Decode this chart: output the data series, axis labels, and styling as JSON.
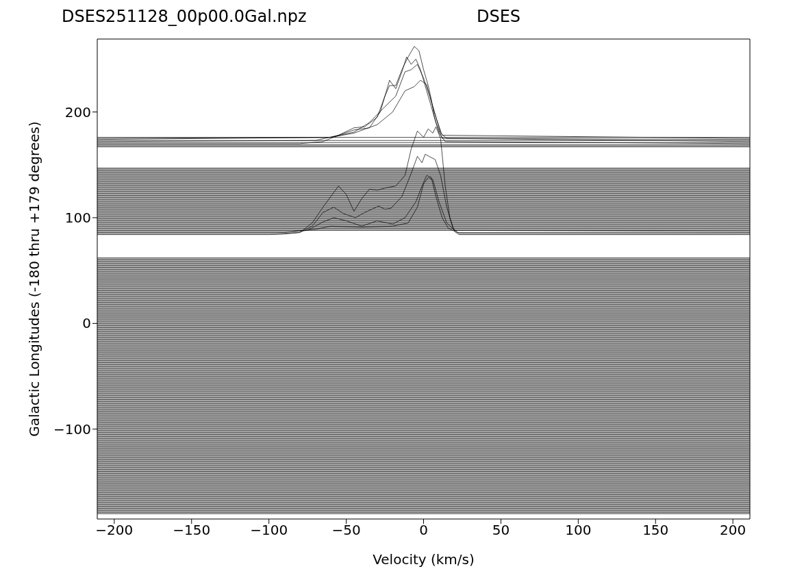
{
  "chart_data": {
    "type": "line",
    "title": "DSES251128_00p00.0Gal.npz",
    "subtitle": "DSES",
    "xlabel": "Velocity (km/s)",
    "ylabel": "Galactic Longitudes   (-180 thru +179 degrees)",
    "color": "#000000",
    "xlim": [
      -211,
      211
    ],
    "ylim": [
      -185,
      269
    ],
    "xticks": [
      -200,
      -150,
      -100,
      -50,
      0,
      50,
      100,
      150,
      200
    ],
    "yticks": [
      -100,
      0,
      100,
      200
    ],
    "marker": "none",
    "line_style": "solid",
    "x": [
      -211,
      211
    ],
    "series": [
      {
        "x": [
          -211,
          -100,
          -90,
          -80,
          -72,
          -65,
          -60,
          -55,
          -50,
          -45,
          -40,
          -35,
          -30,
          -25,
          -18,
          -12,
          -8,
          -4,
          0,
          3,
          6,
          8,
          11,
          14,
          17,
          20,
          23,
          211
        ],
        "values": [
          84,
          84,
          84.5,
          86,
          95,
          110,
          120,
          130,
          122,
          106,
          118,
          127,
          126,
          128,
          130,
          140,
          165,
          182,
          176,
          184,
          180,
          186,
          175,
          130,
          100,
          87,
          84,
          84
        ]
      },
      {
        "x": [
          -211,
          -95,
          -80,
          -72,
          -65,
          -58,
          -52,
          -44,
          -38,
          -29,
          -25,
          -21,
          -14,
          -8,
          -4,
          -1,
          1,
          7.5,
          11,
          15,
          19,
          23,
          211
        ],
        "values": [
          85,
          85,
          86,
          92,
          105,
          110,
          104,
          100,
          105,
          111,
          108,
          109,
          120,
          142,
          158,
          152,
          160,
          155,
          140,
          110,
          90,
          85,
          85
        ]
      },
      {
        "x": [
          -211,
          -90,
          -75,
          -65,
          -58,
          -50,
          -40,
          -30,
          -20,
          -12,
          -5,
          -1,
          2,
          5,
          8,
          12,
          16,
          22,
          211
        ],
        "values": [
          86,
          86,
          88,
          96,
          100,
          97,
          92,
          97,
          94,
          100,
          115,
          130,
          140,
          138,
          120,
          100,
          90,
          86,
          86
        ]
      },
      {
        "x": [
          -211,
          -85,
          -70,
          -60,
          -40,
          -20,
          -10,
          -4,
          0,
          3,
          6,
          10,
          15,
          20,
          211
        ],
        "values": [
          87,
          87,
          89,
          92,
          91,
          92,
          95,
          110,
          132,
          138,
          136,
          115,
          95,
          88,
          87
        ]
      },
      {
        "x": [
          -211,
          -80,
          -65,
          -55,
          -45,
          -38,
          -30,
          -25,
          -22,
          -18,
          -14,
          -10,
          -6,
          -3,
          0,
          3,
          5,
          7,
          10,
          14,
          211
        ],
        "values": [
          170,
          170,
          172,
          178,
          185,
          186,
          195,
          215,
          225,
          225,
          240,
          252,
          262,
          258,
          240,
          225,
          212,
          195,
          180,
          172,
          170
        ]
      },
      {
        "x": [
          -211,
          -70,
          -55,
          -45,
          -35,
          -28,
          -22,
          -18,
          -14,
          -11,
          -8,
          -5,
          -2,
          2,
          5,
          8,
          12,
          211
        ],
        "values": [
          172,
          173,
          178,
          183,
          185,
          200,
          230,
          222,
          238,
          252,
          245,
          250,
          240,
          220,
          205,
          190,
          175,
          172
        ]
      },
      {
        "x": [
          -211,
          -60,
          -45,
          -35,
          -25,
          -18,
          -12,
          -8,
          -4,
          0,
          4,
          7,
          11,
          15,
          211
        ],
        "values": [
          174,
          176,
          181,
          190,
          205,
          215,
          238,
          240,
          245,
          232,
          215,
          200,
          180,
          175,
          174
        ]
      },
      {
        "x": [
          -211,
          -60,
          -45,
          -30,
          -20,
          -12,
          -6,
          -2,
          2,
          5,
          8,
          12,
          211
        ],
        "values": [
          175,
          176,
          180,
          188,
          200,
          220,
          224,
          230,
          226,
          210,
          195,
          178,
          175
        ]
      },
      {
        "values": [
          167,
          167
        ]
      },
      {
        "values": [
          168,
          168
        ]
      },
      {
        "values": [
          169,
          169
        ]
      },
      {
        "values": [
          171,
          171
        ]
      },
      {
        "values": [
          173,
          173
        ]
      },
      {
        "values": [
          176,
          176
        ]
      },
      {
        "values": [
          88,
          88
        ]
      },
      {
        "values": [
          89,
          89
        ]
      },
      {
        "values": [
          90,
          90
        ]
      },
      {
        "values": [
          91,
          91
        ]
      },
      {
        "values": [
          92,
          92
        ]
      },
      {
        "values": [
          93,
          93
        ]
      },
      {
        "values": [
          94,
          94
        ]
      },
      {
        "values": [
          95,
          95
        ]
      },
      {
        "values": [
          96,
          96
        ]
      },
      {
        "values": [
          97,
          97
        ]
      },
      {
        "values": [
          98,
          98
        ]
      },
      {
        "values": [
          99,
          99
        ]
      },
      {
        "values": [
          100,
          100
        ]
      },
      {
        "values": [
          101,
          101
        ]
      },
      {
        "values": [
          102,
          102
        ]
      },
      {
        "values": [
          103,
          103
        ]
      },
      {
        "values": [
          104,
          104
        ]
      },
      {
        "values": [
          105,
          105
        ]
      },
      {
        "values": [
          106,
          106
        ]
      },
      {
        "values": [
          107,
          107
        ]
      },
      {
        "values": [
          108,
          108
        ]
      },
      {
        "values": [
          109,
          109
        ]
      },
      {
        "values": [
          110,
          110
        ]
      },
      {
        "values": [
          111,
          111
        ]
      },
      {
        "values": [
          112,
          112
        ]
      },
      {
        "values": [
          113,
          113
        ]
      },
      {
        "values": [
          114,
          114
        ]
      },
      {
        "values": [
          115,
          115
        ]
      },
      {
        "values": [
          116,
          116
        ]
      },
      {
        "values": [
          117,
          117
        ]
      },
      {
        "values": [
          118,
          118
        ]
      },
      {
        "values": [
          119,
          119
        ]
      },
      {
        "values": [
          120,
          120
        ]
      },
      {
        "values": [
          121,
          121
        ]
      },
      {
        "values": [
          122,
          122
        ]
      },
      {
        "values": [
          123,
          123
        ]
      },
      {
        "values": [
          124,
          124
        ]
      },
      {
        "values": [
          125,
          125
        ]
      },
      {
        "values": [
          126,
          126
        ]
      },
      {
        "values": [
          127,
          127
        ]
      },
      {
        "values": [
          128,
          128
        ]
      },
      {
        "values": [
          129,
          129
        ]
      },
      {
        "values": [
          130,
          130
        ]
      },
      {
        "values": [
          131,
          131
        ]
      },
      {
        "values": [
          132,
          132
        ]
      },
      {
        "values": [
          133,
          133
        ]
      },
      {
        "values": [
          134,
          134
        ]
      },
      {
        "values": [
          135,
          135
        ]
      },
      {
        "values": [
          136,
          136
        ]
      },
      {
        "values": [
          137,
          137
        ]
      },
      {
        "values": [
          138,
          138
        ]
      },
      {
        "values": [
          139,
          139
        ]
      },
      {
        "values": [
          140,
          140
        ]
      },
      {
        "values": [
          141,
          141
        ]
      },
      {
        "values": [
          142,
          142
        ]
      },
      {
        "values": [
          143,
          143
        ]
      },
      {
        "values": [
          144,
          144
        ]
      },
      {
        "values": [
          145,
          145
        ]
      },
      {
        "values": [
          146,
          146
        ]
      },
      {
        "values": [
          147,
          147
        ]
      },
      {
        "values": [
          -180,
          -180
        ]
      },
      {
        "values": [
          -179,
          -179
        ]
      },
      {
        "values": [
          -178,
          -178
        ]
      },
      {
        "values": [
          -177,
          -177
        ]
      },
      {
        "values": [
          -176,
          -176
        ]
      },
      {
        "values": [
          -175,
          -175
        ]
      },
      {
        "values": [
          -174,
          -174
        ]
      },
      {
        "values": [
          -173,
          -173
        ]
      },
      {
        "values": [
          -172,
          -172
        ]
      },
      {
        "values": [
          -171,
          -171
        ]
      },
      {
        "values": [
          -170,
          -170
        ]
      },
      {
        "values": [
          -169,
          -169
        ]
      },
      {
        "values": [
          -168,
          -168
        ]
      },
      {
        "values": [
          -167,
          -167
        ]
      },
      {
        "values": [
          -166,
          -166
        ]
      },
      {
        "values": [
          -165,
          -165
        ]
      },
      {
        "values": [
          -164,
          -164
        ]
      },
      {
        "values": [
          -163,
          -163
        ]
      },
      {
        "values": [
          -162,
          -162
        ]
      },
      {
        "values": [
          -161,
          -161
        ]
      },
      {
        "values": [
          -160,
          -160
        ]
      },
      {
        "values": [
          -159,
          -159
        ]
      },
      {
        "values": [
          -158,
          -158
        ]
      },
      {
        "values": [
          -157,
          -157
        ]
      },
      {
        "values": [
          -156,
          -156
        ]
      },
      {
        "values": [
          -155,
          -155
        ]
      },
      {
        "values": [
          -154,
          -154
        ]
      },
      {
        "values": [
          -153,
          -153
        ]
      },
      {
        "values": [
          -152,
          -152
        ]
      },
      {
        "values": [
          -151,
          -151
        ]
      },
      {
        "values": [
          -150,
          -150
        ]
      },
      {
        "values": [
          -149,
          -149
        ]
      },
      {
        "values": [
          -148,
          -148
        ]
      },
      {
        "values": [
          -147,
          -147
        ]
      },
      {
        "values": [
          -146,
          -146
        ]
      },
      {
        "values": [
          -145,
          -145
        ]
      },
      {
        "values": [
          -144,
          -144
        ]
      },
      {
        "values": [
          -143,
          -143
        ]
      },
      {
        "values": [
          -142,
          -142
        ]
      },
      {
        "values": [
          -141,
          -141
        ]
      },
      {
        "values": [
          -140,
          -140
        ]
      },
      {
        "values": [
          -139,
          -139
        ]
      },
      {
        "values": [
          -138,
          -138
        ]
      },
      {
        "values": [
          -137,
          -137
        ]
      },
      {
        "values": [
          -136,
          -136
        ]
      },
      {
        "values": [
          -135,
          -135
        ]
      },
      {
        "values": [
          -134,
          -134
        ]
      },
      {
        "values": [
          -133,
          -133
        ]
      },
      {
        "values": [
          -132,
          -132
        ]
      },
      {
        "values": [
          -131,
          -131
        ]
      },
      {
        "values": [
          -130,
          -130
        ]
      },
      {
        "values": [
          -129,
          -129
        ]
      },
      {
        "values": [
          -128,
          -128
        ]
      },
      {
        "values": [
          -127,
          -127
        ]
      },
      {
        "values": [
          -126,
          -126
        ]
      },
      {
        "values": [
          -125,
          -125
        ]
      },
      {
        "values": [
          -124,
          -124
        ]
      },
      {
        "values": [
          -123,
          -123
        ]
      },
      {
        "values": [
          -122,
          -122
        ]
      },
      {
        "values": [
          -121,
          -121
        ]
      },
      {
        "values": [
          -120,
          -120
        ]
      },
      {
        "values": [
          -119,
          -119
        ]
      },
      {
        "values": [
          -118,
          -118
        ]
      },
      {
        "values": [
          -117,
          -117
        ]
      },
      {
        "values": [
          -116,
          -116
        ]
      },
      {
        "values": [
          -115,
          -115
        ]
      },
      {
        "values": [
          -114,
          -114
        ]
      },
      {
        "values": [
          -113,
          -113
        ]
      },
      {
        "values": [
          -112,
          -112
        ]
      },
      {
        "values": [
          -111,
          -111
        ]
      },
      {
        "values": [
          -110,
          -110
        ]
      },
      {
        "values": [
          -109,
          -109
        ]
      },
      {
        "values": [
          -108,
          -108
        ]
      },
      {
        "values": [
          -107,
          -107
        ]
      },
      {
        "values": [
          -106,
          -106
        ]
      },
      {
        "values": [
          -105,
          -105
        ]
      },
      {
        "values": [
          -104,
          -104
        ]
      },
      {
        "values": [
          -103,
          -103
        ]
      },
      {
        "values": [
          -102,
          -102
        ]
      },
      {
        "values": [
          -101,
          -101
        ]
      },
      {
        "values": [
          -100,
          -100
        ]
      },
      {
        "values": [
          -99,
          -99
        ]
      },
      {
        "values": [
          -98,
          -98
        ]
      },
      {
        "values": [
          -97,
          -97
        ]
      },
      {
        "values": [
          -96,
          -96
        ]
      },
      {
        "values": [
          -95,
          -95
        ]
      },
      {
        "values": [
          -94,
          -94
        ]
      },
      {
        "values": [
          -93,
          -93
        ]
      },
      {
        "values": [
          -92,
          -92
        ]
      },
      {
        "values": [
          -91,
          -91
        ]
      },
      {
        "values": [
          -90,
          -90
        ]
      },
      {
        "values": [
          -89,
          -89
        ]
      },
      {
        "values": [
          -88,
          -88
        ]
      },
      {
        "values": [
          -87,
          -87
        ]
      },
      {
        "values": [
          -86,
          -86
        ]
      },
      {
        "values": [
          -85,
          -85
        ]
      },
      {
        "values": [
          -84,
          -84
        ]
      },
      {
        "values": [
          -83,
          -83
        ]
      },
      {
        "values": [
          -82,
          -82
        ]
      },
      {
        "values": [
          -81,
          -81
        ]
      },
      {
        "values": [
          -80,
          -80
        ]
      },
      {
        "values": [
          -79,
          -79
        ]
      },
      {
        "values": [
          -78,
          -78
        ]
      },
      {
        "values": [
          -77,
          -77
        ]
      },
      {
        "values": [
          -76,
          -76
        ]
      },
      {
        "values": [
          -75,
          -75
        ]
      },
      {
        "values": [
          -74,
          -74
        ]
      },
      {
        "values": [
          -73,
          -73
        ]
      },
      {
        "values": [
          -72,
          -72
        ]
      },
      {
        "values": [
          -71,
          -71
        ]
      },
      {
        "values": [
          -70,
          -70
        ]
      },
      {
        "values": [
          -69,
          -69
        ]
      },
      {
        "values": [
          -68,
          -68
        ]
      },
      {
        "values": [
          -67,
          -67
        ]
      },
      {
        "values": [
          -66,
          -66
        ]
      },
      {
        "values": [
          -65,
          -65
        ]
      },
      {
        "values": [
          -64,
          -64
        ]
      },
      {
        "values": [
          -63,
          -63
        ]
      },
      {
        "values": [
          -62,
          -62
        ]
      },
      {
        "values": [
          -61,
          -61
        ]
      },
      {
        "values": [
          -60,
          -60
        ]
      },
      {
        "values": [
          -59,
          -59
        ]
      },
      {
        "values": [
          -58,
          -58
        ]
      },
      {
        "values": [
          -57,
          -57
        ]
      },
      {
        "values": [
          -56,
          -56
        ]
      },
      {
        "values": [
          -55,
          -55
        ]
      },
      {
        "values": [
          -54,
          -54
        ]
      },
      {
        "values": [
          -53,
          -53
        ]
      },
      {
        "values": [
          -52,
          -52
        ]
      },
      {
        "values": [
          -51,
          -51
        ]
      },
      {
        "values": [
          -50,
          -50
        ]
      },
      {
        "values": [
          -49,
          -49
        ]
      },
      {
        "values": [
          -48,
          -48
        ]
      },
      {
        "values": [
          -47,
          -47
        ]
      },
      {
        "values": [
          -46,
          -46
        ]
      },
      {
        "values": [
          -45,
          -45
        ]
      },
      {
        "values": [
          -44,
          -44
        ]
      },
      {
        "values": [
          -43,
          -43
        ]
      },
      {
        "values": [
          -42,
          -42
        ]
      },
      {
        "values": [
          -41,
          -41
        ]
      },
      {
        "values": [
          -40,
          -40
        ]
      },
      {
        "values": [
          -39,
          -39
        ]
      },
      {
        "values": [
          -38,
          -38
        ]
      },
      {
        "values": [
          -37,
          -37
        ]
      },
      {
        "values": [
          -36,
          -36
        ]
      },
      {
        "values": [
          -35,
          -35
        ]
      },
      {
        "values": [
          -34,
          -34
        ]
      },
      {
        "values": [
          -33,
          -33
        ]
      },
      {
        "values": [
          -32,
          -32
        ]
      },
      {
        "values": [
          -31,
          -31
        ]
      },
      {
        "values": [
          -30,
          -30
        ]
      },
      {
        "values": [
          -29,
          -29
        ]
      },
      {
        "values": [
          -28,
          -28
        ]
      },
      {
        "values": [
          -27,
          -27
        ]
      },
      {
        "values": [
          -26,
          -26
        ]
      },
      {
        "values": [
          -25,
          -25
        ]
      },
      {
        "values": [
          -24,
          -24
        ]
      },
      {
        "values": [
          -23,
          -23
        ]
      },
      {
        "values": [
          -22,
          -22
        ]
      },
      {
        "values": [
          -21,
          -21
        ]
      },
      {
        "values": [
          -20,
          -20
        ]
      },
      {
        "values": [
          -19,
          -19
        ]
      },
      {
        "values": [
          -18,
          -18
        ]
      },
      {
        "values": [
          -17,
          -17
        ]
      },
      {
        "values": [
          -16,
          -16
        ]
      },
      {
        "values": [
          -15,
          -15
        ]
      },
      {
        "values": [
          -14,
          -14
        ]
      },
      {
        "values": [
          -13,
          -13
        ]
      },
      {
        "values": [
          -12,
          -12
        ]
      },
      {
        "values": [
          -11,
          -11
        ]
      },
      {
        "values": [
          -10,
          -10
        ]
      },
      {
        "values": [
          -9,
          -9
        ]
      },
      {
        "values": [
          -8,
          -8
        ]
      },
      {
        "values": [
          -7,
          -7
        ]
      },
      {
        "values": [
          -6,
          -6
        ]
      },
      {
        "values": [
          -5,
          -5
        ]
      },
      {
        "values": [
          -4,
          -4
        ]
      },
      {
        "values": [
          -3,
          -3
        ]
      },
      {
        "values": [
          -2,
          -2
        ]
      },
      {
        "values": [
          -1,
          -1
        ]
      },
      {
        "values": [
          0,
          0
        ]
      },
      {
        "values": [
          1,
          1
        ]
      },
      {
        "values": [
          2,
          2
        ]
      },
      {
        "values": [
          3,
          3
        ]
      },
      {
        "values": [
          4,
          4
        ]
      },
      {
        "values": [
          5,
          5
        ]
      },
      {
        "values": [
          6,
          6
        ]
      },
      {
        "values": [
          7,
          7
        ]
      },
      {
        "values": [
          8,
          8
        ]
      },
      {
        "values": [
          9,
          9
        ]
      },
      {
        "values": [
          10,
          10
        ]
      },
      {
        "values": [
          11,
          11
        ]
      },
      {
        "values": [
          12,
          12
        ]
      },
      {
        "values": [
          13,
          13
        ]
      },
      {
        "values": [
          14,
          14
        ]
      },
      {
        "values": [
          15,
          15
        ]
      },
      {
        "values": [
          16,
          16
        ]
      },
      {
        "values": [
          17,
          17
        ]
      },
      {
        "values": [
          18,
          18
        ]
      },
      {
        "values": [
          19,
          19
        ]
      },
      {
        "values": [
          20,
          20
        ]
      },
      {
        "values": [
          21,
          21
        ]
      },
      {
        "values": [
          22,
          22
        ]
      },
      {
        "values": [
          23,
          23
        ]
      },
      {
        "values": [
          24,
          24
        ]
      },
      {
        "values": [
          25,
          25
        ]
      },
      {
        "values": [
          26,
          26
        ]
      },
      {
        "values": [
          27,
          27
        ]
      },
      {
        "values": [
          28,
          28
        ]
      },
      {
        "values": [
          29,
          29
        ]
      },
      {
        "values": [
          30,
          30
        ]
      },
      {
        "values": [
          31,
          31
        ]
      },
      {
        "values": [
          32,
          32
        ]
      },
      {
        "values": [
          33,
          33
        ]
      },
      {
        "values": [
          34,
          34
        ]
      },
      {
        "values": [
          35,
          35
        ]
      },
      {
        "values": [
          36,
          36
        ]
      },
      {
        "values": [
          37,
          37
        ]
      },
      {
        "values": [
          38,
          38
        ]
      },
      {
        "values": [
          39,
          39
        ]
      },
      {
        "values": [
          40,
          40
        ]
      },
      {
        "values": [
          41,
          41
        ]
      },
      {
        "values": [
          42,
          42
        ]
      },
      {
        "values": [
          43,
          43
        ]
      },
      {
        "values": [
          44,
          44
        ]
      },
      {
        "values": [
          45,
          45
        ]
      },
      {
        "values": [
          46,
          46
        ]
      },
      {
        "values": [
          47,
          47
        ]
      },
      {
        "values": [
          48,
          48
        ]
      },
      {
        "values": [
          49,
          49
        ]
      },
      {
        "values": [
          50,
          50
        ]
      },
      {
        "values": [
          51,
          51
        ]
      },
      {
        "values": [
          52,
          52
        ]
      },
      {
        "values": [
          53,
          53
        ]
      },
      {
        "values": [
          54,
          54
        ]
      },
      {
        "values": [
          55,
          55
        ]
      },
      {
        "values": [
          56,
          56
        ]
      },
      {
        "values": [
          57,
          57
        ]
      },
      {
        "values": [
          58,
          58
        ]
      },
      {
        "values": [
          59,
          59
        ]
      },
      {
        "values": [
          60,
          60
        ]
      },
      {
        "values": [
          61,
          61
        ]
      },
      {
        "values": [
          62,
          62
        ]
      }
    ]
  }
}
